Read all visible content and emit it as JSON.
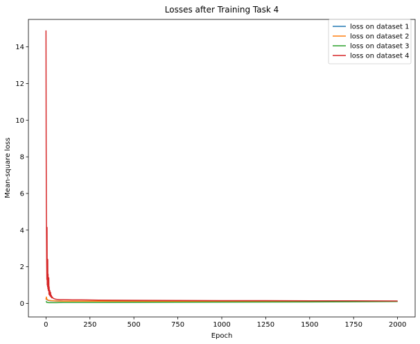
{
  "chart_data": {
    "type": "line",
    "title": "Losses after Training Task 4",
    "xlabel": "Epoch",
    "ylabel": "Mean-square loss",
    "xlim": [
      -100,
      2100
    ],
    "ylim": [
      -0.74,
      15.5
    ],
    "xticks": [
      0,
      250,
      500,
      750,
      1000,
      1250,
      1500,
      1750,
      2000
    ],
    "xtick_labels": [
      "0",
      "250",
      "500",
      "750",
      "1000",
      "1250",
      "1500",
      "1750",
      "2000"
    ],
    "yticks": [
      0,
      2,
      4,
      6,
      8,
      10,
      12,
      14
    ],
    "ytick_labels": [
      "0",
      "2",
      "4",
      "6",
      "8",
      "10",
      "12",
      "14"
    ],
    "grid": false,
    "legend_position": "top-right",
    "series": [
      {
        "name": "loss on dataset 1",
        "color": "#1f77b4",
        "x": [
          0,
          2,
          4,
          8,
          15,
          30,
          60,
          100,
          300,
          600,
          1000,
          1500,
          2000
        ],
        "y": [
          0.25,
          0.3,
          0.22,
          0.18,
          0.16,
          0.14,
          0.13,
          0.12,
          0.12,
          0.11,
          0.11,
          0.1,
          0.1
        ]
      },
      {
        "name": "loss on dataset 2",
        "color": "#ff7f0e",
        "x": [
          0,
          2,
          4,
          8,
          15,
          30,
          60,
          100,
          300,
          600,
          1000,
          1500,
          2000
        ],
        "y": [
          0.2,
          0.35,
          0.25,
          0.2,
          0.17,
          0.15,
          0.13,
          0.12,
          0.12,
          0.11,
          0.11,
          0.11,
          0.12
        ]
      },
      {
        "name": "loss on dataset 3",
        "color": "#2ca02c",
        "x": [
          0,
          2,
          4,
          8,
          15,
          30,
          60,
          100,
          300,
          600,
          1000,
          1500,
          2000
        ],
        "y": [
          0.12,
          0.1,
          0.06,
          0.05,
          0.04,
          0.04,
          0.04,
          0.05,
          0.05,
          0.06,
          0.07,
          0.08,
          0.1
        ]
      },
      {
        "name": "loss on dataset 4",
        "color": "#d62728",
        "x": [
          0,
          1,
          2,
          3,
          4,
          5,
          6,
          7,
          8,
          9,
          10,
          11,
          12,
          13,
          14,
          15,
          16,
          17,
          18,
          20,
          22,
          24,
          26,
          28,
          30,
          33,
          36,
          40,
          45,
          50,
          60,
          70,
          80,
          100,
          150,
          200,
          300,
          500,
          750,
          1000,
          1250,
          1500,
          1750,
          2000
        ],
        "y": [
          14.9,
          8.6,
          5.5,
          3.8,
          2.2,
          1.3,
          4.15,
          1.0,
          2.0,
          0.9,
          2.4,
          0.8,
          1.6,
          0.7,
          1.1,
          0.7,
          1.4,
          0.5,
          0.9,
          0.45,
          0.7,
          0.4,
          0.6,
          0.35,
          0.45,
          0.3,
          0.35,
          0.28,
          0.26,
          0.24,
          0.22,
          0.21,
          0.2,
          0.2,
          0.19,
          0.19,
          0.18,
          0.17,
          0.16,
          0.15,
          0.15,
          0.14,
          0.14,
          0.13
        ]
      }
    ]
  }
}
